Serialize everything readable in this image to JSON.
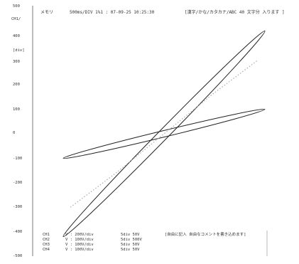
{
  "header": {
    "memory_label": "メモリ",
    "info": "500ms/DIV 1%1 : 07-09-25 10:25:30",
    "comment": "[漢字/かな/カタカナ/ABC 40 文字分 入ります ]"
  },
  "y_axis": {
    "unit_label": "CH1/",
    "ticks": [
      "500",
      "400",
      "[div]",
      "300",
      "200",
      "100",
      "0",
      "-100",
      "-200",
      "-300",
      "-400",
      "-500"
    ]
  },
  "channels": [
    {
      "ch": "CH1",
      "settings": "V : 200V/div",
      "range": "5div 50V"
    },
    {
      "ch": "CH2",
      "settings": "V : 100V/div",
      "range": "5div 500V"
    },
    {
      "ch": "CH3",
      "settings": "V : 100V/div",
      "range": "5div 50V"
    },
    {
      "ch": "CH4",
      "settings": "V : 100V/div",
      "range": "5div 50V"
    }
  ],
  "footer_comment": "[自由に記入 自由なコメントを書き込めます]",
  "chart_data": {
    "type": "line",
    "xlim": [
      -500,
      500
    ],
    "ylim": [
      -500,
      500
    ],
    "grid": false,
    "legend": "none",
    "series": [
      {
        "color": "#222222",
        "style": "solid-ellipse",
        "points": [
          [
            -420,
            -420
          ],
          [
            0,
            0
          ],
          [
            420,
            420
          ]
        ],
        "width": 14
      },
      {
        "color": "#222222",
        "style": "solid-ellipse",
        "points": [
          [
            -420,
            -100
          ],
          [
            0,
            0
          ],
          [
            420,
            100
          ]
        ],
        "width": 9
      },
      {
        "color": "#aaaaaa",
        "style": "dotted",
        "points": [
          [
            -390,
            -300
          ],
          [
            -200,
            -160
          ],
          [
            0,
            0
          ],
          [
            200,
            160
          ],
          [
            390,
            300
          ]
        ]
      }
    ]
  }
}
